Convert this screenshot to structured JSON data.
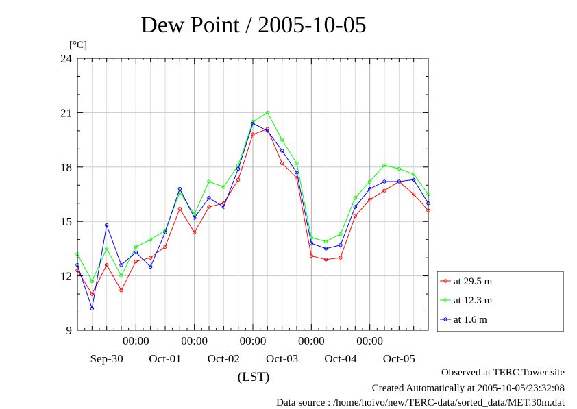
{
  "chart_data": {
    "type": "line",
    "title": "Dew Point / 2005-10-05",
    "ylabel": "[°C]",
    "xlabel": "(LST)",
    "ylim": [
      9,
      24
    ],
    "yticks": [
      9,
      12,
      15,
      18,
      21,
      24
    ],
    "grid": true,
    "x_time_ticks": [
      "00:00",
      "00:00",
      "00:00",
      "00:00",
      "00:00"
    ],
    "x_date_labels": [
      "Sep-30",
      "Oct-01",
      "Oct-02",
      "Oct-03",
      "Oct-04",
      "Oct-05"
    ],
    "legend_position": "outside-right-bottom",
    "x_hours": [
      0,
      6,
      12,
      18,
      24,
      30,
      36,
      42,
      48,
      54,
      60,
      66,
      72,
      78,
      84,
      90,
      96,
      102,
      108,
      114,
      120,
      126,
      132,
      138,
      144
    ],
    "series": [
      {
        "name": "at 29.5 m",
        "color": "#ff0000",
        "values": [
          12.3,
          11.0,
          12.6,
          11.2,
          12.8,
          13.0,
          13.6,
          15.7,
          14.4,
          15.8,
          16.0,
          17.3,
          19.8,
          20.1,
          18.2,
          17.4,
          13.1,
          12.9,
          13.0,
          15.3,
          16.2,
          16.7,
          17.2,
          16.5,
          15.6
        ]
      },
      {
        "name": "at 12.3 m",
        "color": "#00ff00",
        "values": [
          13.2,
          11.7,
          13.5,
          12.0,
          13.6,
          14.0,
          14.5,
          16.6,
          15.4,
          17.2,
          16.9,
          18.1,
          20.5,
          21.0,
          19.5,
          18.2,
          14.1,
          13.9,
          14.3,
          16.3,
          17.2,
          18.1,
          17.9,
          17.6,
          16.5
        ]
      },
      {
        "name": "at 1.6 m",
        "color": "#0000ff",
        "values": [
          12.6,
          10.2,
          14.8,
          12.6,
          13.3,
          12.5,
          14.4,
          16.8,
          15.2,
          16.3,
          15.8,
          17.9,
          20.4,
          20.0,
          18.9,
          17.7,
          13.8,
          13.5,
          13.7,
          15.8,
          16.8,
          17.2,
          17.2,
          17.3,
          16.0
        ]
      }
    ]
  },
  "footer": {
    "line1": "Observed at TERC Tower site",
    "line2": "Created Automatically at 2005-10-05/23:32:08",
    "line3": "Data source : /home/hoivo/new/TERC-data/sorted_data/MET.30m.dat"
  }
}
